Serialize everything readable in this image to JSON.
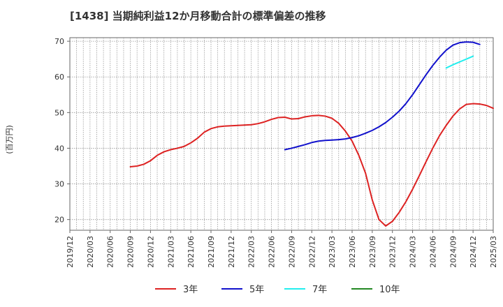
{
  "chart_data": {
    "type": "line",
    "title": "[1438]  当期純利益12か月移動合計の標準偏差の推移",
    "ylabel": "(百万円)",
    "xlabel": "",
    "ylim": [
      17,
      71
    ],
    "yticks": [
      20,
      30,
      40,
      50,
      60,
      70
    ],
    "x_tick_labels": [
      "2019/12",
      "2020/03",
      "2020/06",
      "2020/09",
      "2020/12",
      "2021/03",
      "2021/06",
      "2021/09",
      "2021/12",
      "2022/03",
      "2022/06",
      "2022/09",
      "2022/12",
      "2023/03",
      "2023/06",
      "2023/09",
      "2023/12",
      "2024/03",
      "2024/06",
      "2024/09",
      "2024/12",
      "2025/03"
    ],
    "grid": true,
    "legend_position": "bottom",
    "series": [
      {
        "name": "3年",
        "color": "#dd2222",
        "start_month": "2020/09",
        "values": [
          34.8,
          35.0,
          35.5,
          36.5,
          38.0,
          39.0,
          39.6,
          40.0,
          40.5,
          41.5,
          42.8,
          44.5,
          45.5,
          46.0,
          46.2,
          46.3,
          46.4,
          46.5,
          46.6,
          46.9,
          47.4,
          48.1,
          48.6,
          48.7,
          48.2,
          48.3,
          48.8,
          49.1,
          49.2,
          49.0,
          48.4,
          47.0,
          44.8,
          42.0,
          38.0,
          33.0,
          25.5,
          20.0,
          18.2,
          19.5,
          22.0,
          25.0,
          28.5,
          32.3,
          36.2,
          40.0,
          43.5,
          46.4,
          49.0,
          51.0,
          52.3,
          52.5,
          52.4,
          52.0,
          51.2
        ]
      },
      {
        "name": "5年",
        "color": "#1111cc",
        "start_month": "2022/08",
        "values": [
          39.6,
          40.0,
          40.5,
          41.0,
          41.6,
          42.0,
          42.2,
          42.3,
          42.4,
          42.6,
          43.0,
          43.5,
          44.2,
          45.0,
          46.0,
          47.2,
          48.7,
          50.4,
          52.5,
          55.0,
          57.8,
          60.6,
          63.2,
          65.5,
          67.5,
          68.9,
          69.6,
          69.8,
          69.7,
          69.1
        ]
      },
      {
        "name": "7年",
        "color": "#22eeee",
        "start_month": "2024/08",
        "values": [
          62.5,
          63.4,
          64.2,
          65.0,
          65.8
        ]
      },
      {
        "name": "10年",
        "color": "#228822",
        "start_month": null,
        "values": []
      }
    ]
  }
}
